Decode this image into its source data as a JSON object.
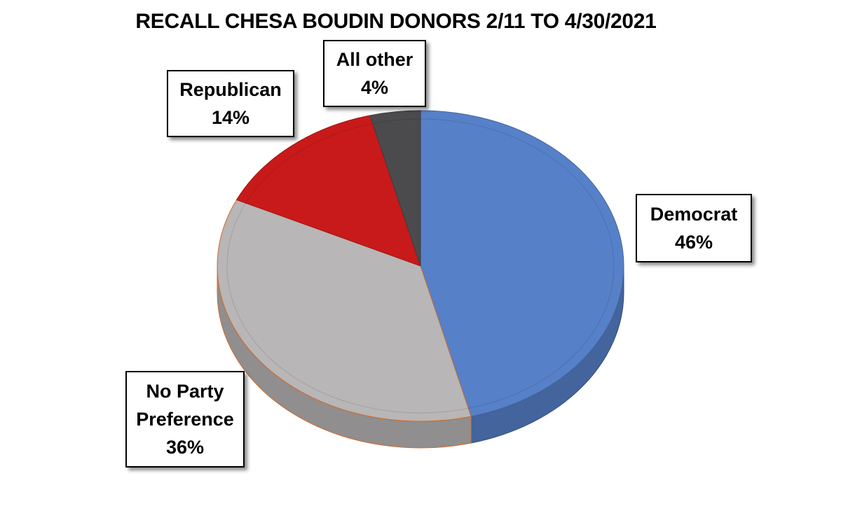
{
  "chart_data": {
    "type": "pie",
    "title": "RECALL CHESA BOUDIN DONORS 2/11 TO 4/30/2021",
    "slices": [
      {
        "label": "Democrat",
        "value": 46,
        "display": "46%",
        "color": "#5680c8"
      },
      {
        "label": "No Party Preference",
        "label_lines": [
          "No Party",
          "Preference"
        ],
        "value": 36,
        "display": "36%",
        "color": "#b8b6b6"
      },
      {
        "label": "Republican",
        "value": 14,
        "display": "14%",
        "color": "#c81a1a"
      },
      {
        "label": "All other",
        "value": 4,
        "display": "4%",
        "color": "#4b4b4d"
      }
    ],
    "style": "3d-tilted"
  }
}
